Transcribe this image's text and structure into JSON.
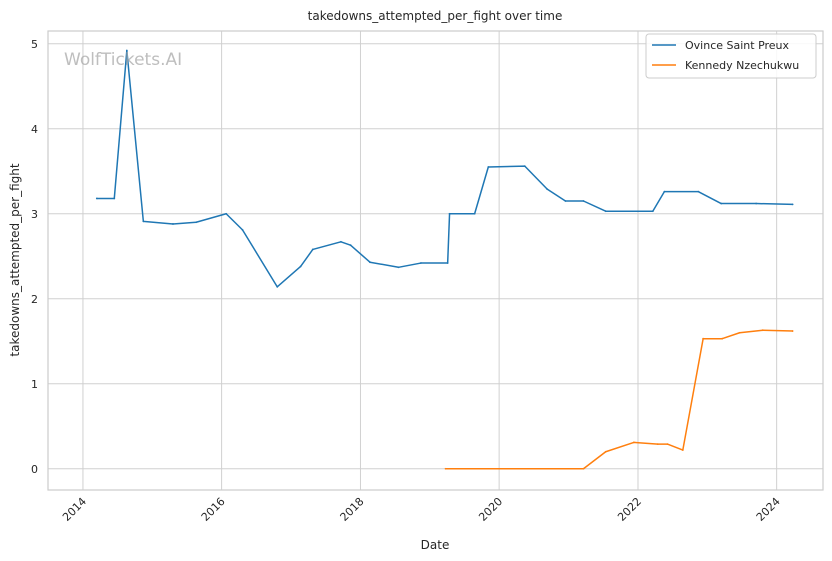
{
  "chart_data": {
    "type": "line",
    "title": "takedowns_attempted_per_fight over time",
    "xlabel": "Date",
    "ylabel": "takedowns_attempted_per_fight",
    "watermark": "WolfTickets.AI",
    "x_ticks": [
      "2014",
      "2016",
      "2018",
      "2020",
      "2022",
      "2024"
    ],
    "y_ticks": [
      "0",
      "1",
      "2",
      "3",
      "4",
      "5"
    ],
    "xlim": [
      "2013-07-01",
      "2024-09-01"
    ],
    "ylim": [
      -0.25,
      5.15
    ],
    "grid": true,
    "legend_position": "top-right",
    "series": [
      {
        "name": "Ovince Saint Preux",
        "color": "#1f77b4",
        "points": [
          [
            "2014-03-15",
            3.18
          ],
          [
            "2014-06-15",
            3.18
          ],
          [
            "2014-08-20",
            4.92
          ],
          [
            "2014-11-15",
            2.91
          ],
          [
            "2015-04-20",
            2.88
          ],
          [
            "2015-08-20",
            2.9
          ],
          [
            "2016-01-25",
            3.0
          ],
          [
            "2016-04-20",
            2.81
          ],
          [
            "2016-10-20",
            2.14
          ],
          [
            "2017-02-20",
            2.38
          ],
          [
            "2017-04-25",
            2.58
          ],
          [
            "2017-09-20",
            2.67
          ],
          [
            "2017-11-10",
            2.63
          ],
          [
            "2018-02-20",
            2.43
          ],
          [
            "2018-07-20",
            2.37
          ],
          [
            "2018-11-15",
            2.42
          ],
          [
            "2019-04-05",
            2.42
          ],
          [
            "2019-04-15",
            3.0
          ],
          [
            "2019-08-25",
            3.0
          ],
          [
            "2019-11-05",
            3.55
          ],
          [
            "2020-05-15",
            3.56
          ],
          [
            "2020-09-10",
            3.29
          ],
          [
            "2020-12-15",
            3.15
          ],
          [
            "2021-03-20",
            3.15
          ],
          [
            "2021-07-15",
            3.03
          ],
          [
            "2022-03-20",
            3.03
          ],
          [
            "2022-05-20",
            3.26
          ],
          [
            "2022-11-15",
            3.26
          ],
          [
            "2023-03-15",
            3.12
          ],
          [
            "2023-09-15",
            3.12
          ],
          [
            "2024-03-25",
            3.11
          ]
        ]
      },
      {
        "name": "Kennedy Nzechukwu",
        "color": "#ff7f0e",
        "points": [
          [
            "2019-03-25",
            0.0
          ],
          [
            "2021-03-20",
            0.0
          ],
          [
            "2021-07-15",
            0.2
          ],
          [
            "2021-12-10",
            0.31
          ],
          [
            "2022-04-15",
            0.29
          ],
          [
            "2022-06-05",
            0.29
          ],
          [
            "2022-08-25",
            0.22
          ],
          [
            "2022-12-10",
            1.53
          ],
          [
            "2023-03-20",
            1.53
          ],
          [
            "2023-06-20",
            1.6
          ],
          [
            "2023-10-20",
            1.63
          ],
          [
            "2024-03-25",
            1.62
          ]
        ]
      }
    ]
  }
}
